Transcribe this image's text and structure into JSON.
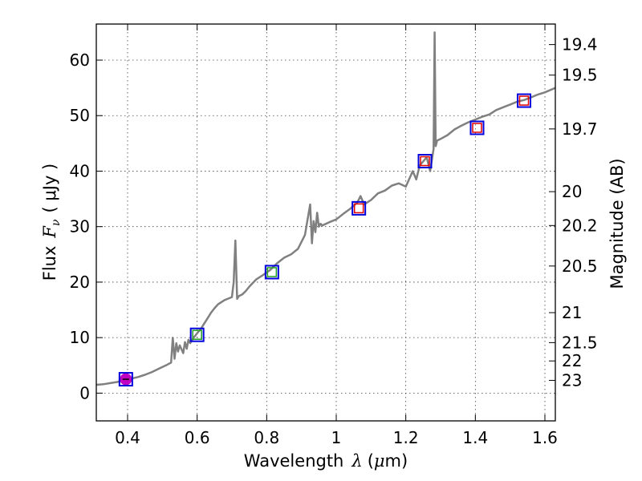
{
  "chart_data": {
    "type": "line",
    "xlabel_prefix": "Wavelength",
    "xlabel_symbol": "λ",
    "xlabel_unit_open": "(",
    "xlabel_unit_mu": "μ",
    "xlabel_unit_rest": "m)",
    "ylabel_prefix": "Flux",
    "ylabel_symbol": "F",
    "ylabel_subscript": "ν",
    "ylabel_unit": "( μJy )",
    "y2label": "Magnitude (AB)",
    "xlim": [
      0.31,
      1.63
    ],
    "ylim": [
      -5,
      66.5
    ],
    "grid": true,
    "xticks": [
      {
        "value": 0.4,
        "label": "0.4"
      },
      {
        "value": 0.6,
        "label": "0.6"
      },
      {
        "value": 0.8,
        "label": "0.8"
      },
      {
        "value": 1.0,
        "label": "1"
      },
      {
        "value": 1.2,
        "label": "1.2"
      },
      {
        "value": 1.4,
        "label": "1.4"
      },
      {
        "value": 1.6,
        "label": "1.6"
      }
    ],
    "yticks": [
      {
        "value": 0,
        "label": "0"
      },
      {
        "value": 10,
        "label": "10"
      },
      {
        "value": 20,
        "label": "20"
      },
      {
        "value": 30,
        "label": "30"
      },
      {
        "value": 40,
        "label": "40"
      },
      {
        "value": 50,
        "label": "50"
      },
      {
        "value": 60,
        "label": "60"
      }
    ],
    "mag_ticks": [
      {
        "label": "19.4",
        "flux": 62.8
      },
      {
        "label": "19.5",
        "flux": 57.3
      },
      {
        "label": "19.7",
        "flux": 47.6
      },
      {
        "label": "20",
        "flux": 36.3
      },
      {
        "label": "20.2",
        "flux": 30.2
      },
      {
        "label": "20.5",
        "flux": 22.9
      },
      {
        "label": "21",
        "flux": 14.5
      },
      {
        "label": "21.5",
        "flux": 9.1
      },
      {
        "label": "22",
        "flux": 5.8
      },
      {
        "label": "23",
        "flux": 2.3
      }
    ],
    "series": [
      {
        "name": "spectrum",
        "color": "#808080",
        "x": [
          0.31,
          0.33,
          0.35,
          0.37,
          0.39,
          0.41,
          0.43,
          0.45,
          0.47,
          0.49,
          0.51,
          0.525,
          0.53,
          0.535,
          0.54,
          0.545,
          0.55,
          0.56,
          0.565,
          0.57,
          0.575,
          0.58,
          0.59,
          0.6,
          0.61,
          0.62,
          0.63,
          0.64,
          0.65,
          0.66,
          0.68,
          0.7,
          0.705,
          0.71,
          0.715,
          0.72,
          0.73,
          0.74,
          0.75,
          0.77,
          0.79,
          0.81,
          0.83,
          0.85,
          0.87,
          0.89,
          0.91,
          0.925,
          0.93,
          0.935,
          0.94,
          0.945,
          0.95,
          0.955,
          0.96,
          0.98,
          1.0,
          1.02,
          1.04,
          1.06,
          1.07,
          1.08,
          1.1,
          1.12,
          1.14,
          1.16,
          1.18,
          1.2,
          1.22,
          1.23,
          1.24,
          1.26,
          1.27,
          1.28,
          1.283,
          1.286,
          1.29,
          1.3,
          1.32,
          1.34,
          1.36,
          1.38,
          1.4,
          1.42,
          1.44,
          1.46,
          1.48,
          1.5,
          1.52,
          1.54,
          1.56,
          1.58,
          1.6,
          1.63
        ],
        "y": [
          1.5,
          1.6,
          1.8,
          2.0,
          2.3,
          2.6,
          2.9,
          3.3,
          3.8,
          4.4,
          5.0,
          5.5,
          10.0,
          6.2,
          9.0,
          7.5,
          8.6,
          7.2,
          9.2,
          8.0,
          9.6,
          9.0,
          10.0,
          10.8,
          11.5,
          12.5,
          13.5,
          14.5,
          15.3,
          16.0,
          16.8,
          17.3,
          20.0,
          27.5,
          17.0,
          17.5,
          17.8,
          18.4,
          19.2,
          20.5,
          21.3,
          22.2,
          23.4,
          24.4,
          25.0,
          26.0,
          28.5,
          34.0,
          27.0,
          31.0,
          29.0,
          32.5,
          30.0,
          30.5,
          30.2,
          30.8,
          31.3,
          32.3,
          33.2,
          34.3,
          35.5,
          34.0,
          34.8,
          36.0,
          36.5,
          37.4,
          37.8,
          37.2,
          40.0,
          38.5,
          41.0,
          42.5,
          40.0,
          44.0,
          65.0,
          44.5,
          45.5,
          45.8,
          46.5,
          47.5,
          48.2,
          48.8,
          49.3,
          49.8,
          50.2,
          51.0,
          51.5,
          52.0,
          52.5,
          52.8,
          53.3,
          53.8,
          54.2,
          55.0
        ]
      }
    ],
    "photometry": [
      {
        "x": 0.395,
        "y": 2.5,
        "fill": "#c000c0",
        "model_color": "#c000c0"
      },
      {
        "x": 0.6,
        "y": 10.5,
        "fill": "none",
        "model_color": "#22a022"
      },
      {
        "x": 0.815,
        "y": 21.8,
        "fill": "none",
        "model_color": "#22a022"
      },
      {
        "x": 1.065,
        "y": 33.3,
        "fill": "none",
        "model_color": "#e00000"
      },
      {
        "x": 1.255,
        "y": 41.8,
        "fill": "none",
        "model_color": "#e00000"
      },
      {
        "x": 1.405,
        "y": 47.8,
        "fill": "none",
        "model_color": "#e00000"
      },
      {
        "x": 1.54,
        "y": 52.7,
        "fill": "none",
        "model_color": "#e00000"
      }
    ],
    "colors": {
      "spectrum": "#808080",
      "obs_box": "#0000dd",
      "model_red": "#e00000",
      "model_green": "#22a022",
      "model_magenta": "#c000c0"
    }
  }
}
